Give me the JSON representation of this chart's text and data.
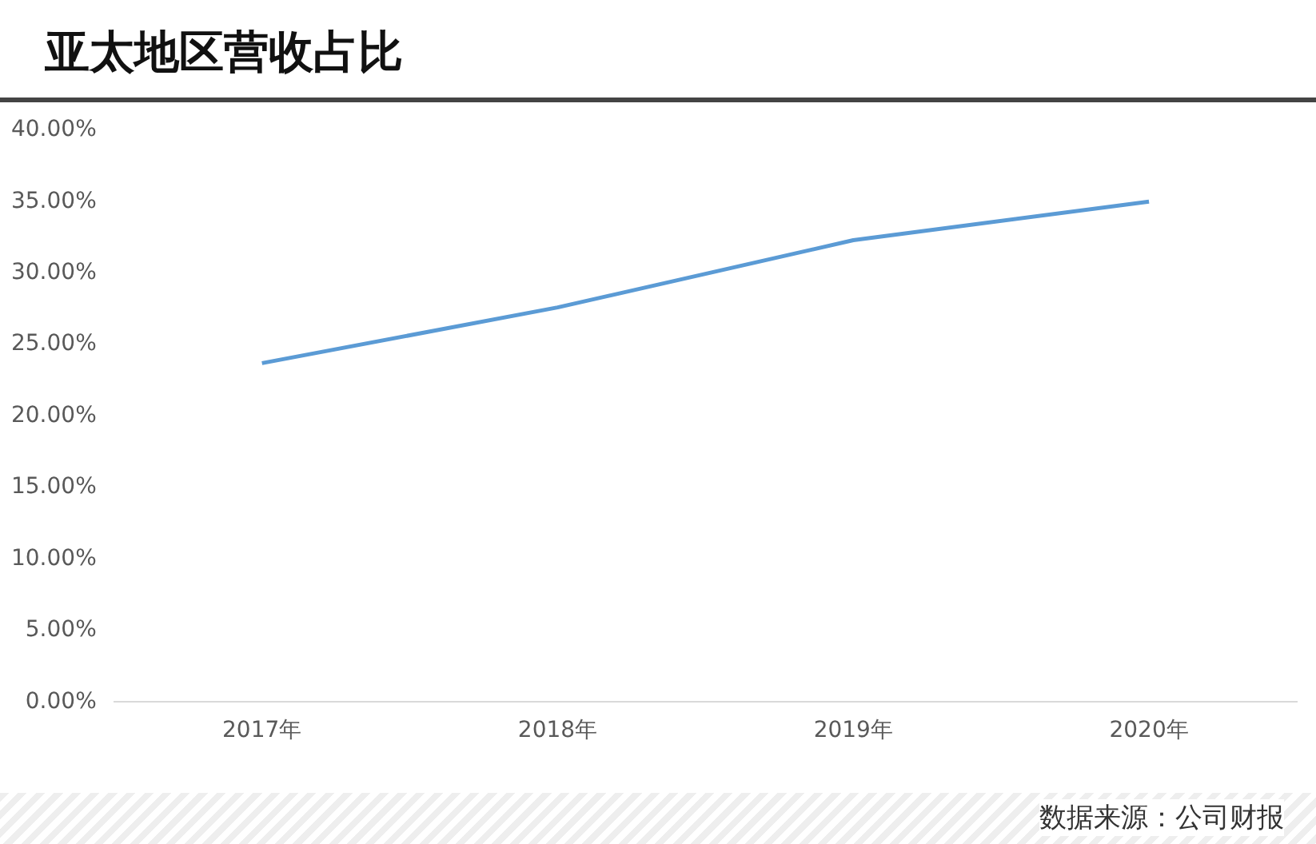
{
  "chart_data": {
    "type": "line",
    "title": "亚太地区营收占比",
    "categories": [
      "2017年",
      "2018年",
      "2019年",
      "2020年"
    ],
    "series": [
      {
        "color": "#5b9bd5",
        "values": [
          23.7,
          27.6,
          32.3,
          35.0
        ]
      }
    ],
    "ylim": [
      0,
      40
    ],
    "yticks": [
      {
        "value": 0,
        "label": "0.00%"
      },
      {
        "value": 5,
        "label": "5.00%"
      },
      {
        "value": 10,
        "label": "10.00%"
      },
      {
        "value": 15,
        "label": "15.00%"
      },
      {
        "value": 20,
        "label": "20.00%"
      },
      {
        "value": 25,
        "label": "25.00%"
      },
      {
        "value": 30,
        "label": "30.00%"
      },
      {
        "value": 35,
        "label": "35.00%"
      },
      {
        "value": 40,
        "label": "40.00%"
      }
    ],
    "marker": "none",
    "line_style": "solid",
    "legend": false,
    "annotations": [
      "数据来源：公司财报"
    ]
  }
}
